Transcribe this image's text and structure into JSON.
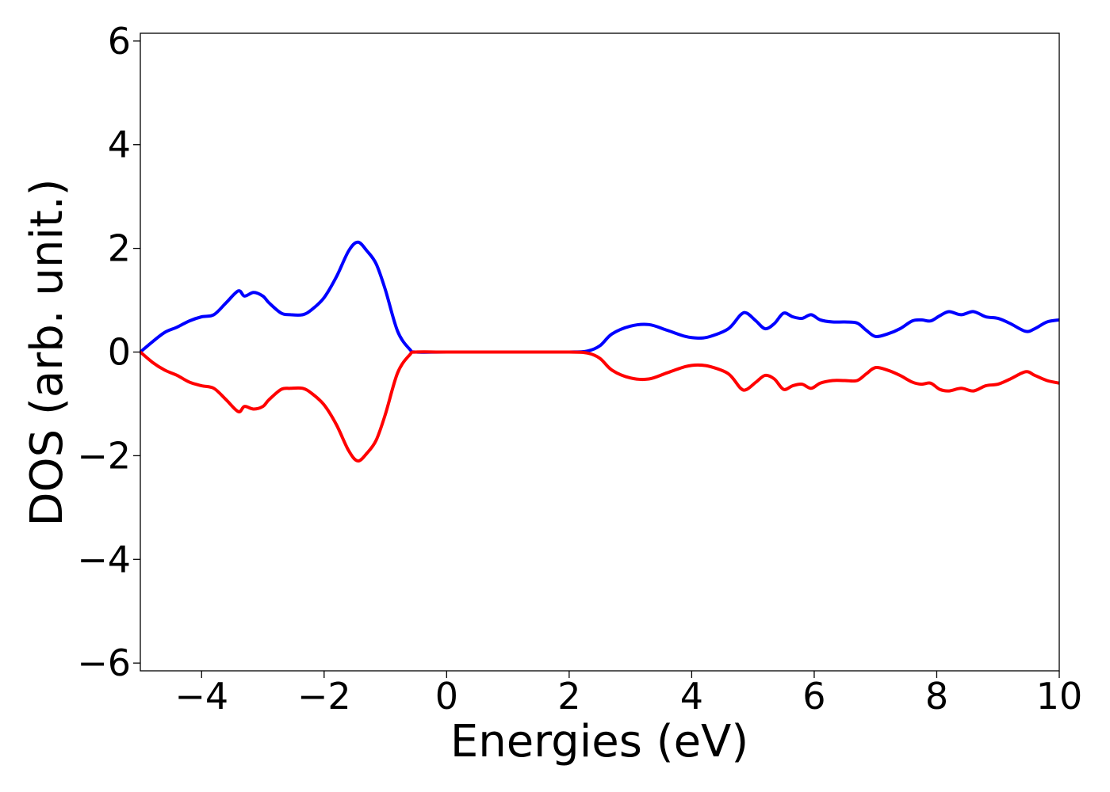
{
  "chart_data": {
    "type": "line",
    "title": "",
    "xlabel": "Energies (eV)",
    "ylabel": "DOS (arb. unit.)",
    "xlim": [
      -5,
      10
    ],
    "ylim": [
      -6.15,
      6.15
    ],
    "grid": false,
    "xticks": [
      -4,
      -2,
      0,
      2,
      4,
      6,
      8,
      10
    ],
    "yticks": [
      6,
      4,
      2,
      0,
      -2,
      -4,
      -6
    ],
    "xtick_labels": [
      "−4",
      "−2",
      "0",
      "2",
      "4",
      "6",
      "8",
      "10"
    ],
    "ytick_labels": [
      "6",
      "4",
      "2",
      "0",
      "−2",
      "−4",
      "−6"
    ],
    "series": [
      {
        "color": "#0000ff",
        "x": [
          -5.0,
          -4.8,
          -4.6,
          -4.4,
          -4.2,
          -4.0,
          -3.8,
          -3.6,
          -3.4,
          -3.3,
          -3.15,
          -3.0,
          -2.9,
          -2.7,
          -2.55,
          -2.35,
          -2.2,
          -2.0,
          -1.8,
          -1.6,
          -1.45,
          -1.3,
          -1.15,
          -1.0,
          -0.8,
          -0.6,
          -0.5,
          0.0,
          1.0,
          2.0,
          2.3,
          2.5,
          2.7,
          3.0,
          3.3,
          3.6,
          3.9,
          4.1,
          4.3,
          4.6,
          4.8,
          4.9,
          5.05,
          5.2,
          5.35,
          5.5,
          5.65,
          5.8,
          5.95,
          6.1,
          6.3,
          6.5,
          6.7,
          6.85,
          7.0,
          7.2,
          7.4,
          7.6,
          7.75,
          7.9,
          8.05,
          8.2,
          8.4,
          8.6,
          8.8,
          9.0,
          9.2,
          9.45,
          9.6,
          9.8,
          10.0
        ],
        "y": [
          0.0,
          0.2,
          0.38,
          0.48,
          0.6,
          0.68,
          0.72,
          0.95,
          1.18,
          1.08,
          1.15,
          1.08,
          0.95,
          0.75,
          0.72,
          0.72,
          0.82,
          1.05,
          1.45,
          1.95,
          2.12,
          1.95,
          1.7,
          1.2,
          0.4,
          0.05,
          0.0,
          0.0,
          0.0,
          0.0,
          0.02,
          0.12,
          0.35,
          0.5,
          0.53,
          0.42,
          0.3,
          0.27,
          0.3,
          0.45,
          0.72,
          0.75,
          0.6,
          0.45,
          0.55,
          0.75,
          0.68,
          0.65,
          0.72,
          0.62,
          0.58,
          0.58,
          0.56,
          0.42,
          0.3,
          0.35,
          0.45,
          0.6,
          0.62,
          0.6,
          0.7,
          0.78,
          0.72,
          0.78,
          0.68,
          0.65,
          0.55,
          0.4,
          0.45,
          0.58,
          0.62
        ]
      },
      {
        "color": "#ff0000",
        "x": [
          -5.0,
          -4.8,
          -4.6,
          -4.4,
          -4.2,
          -4.0,
          -3.8,
          -3.6,
          -3.4,
          -3.3,
          -3.15,
          -3.0,
          -2.9,
          -2.7,
          -2.55,
          -2.35,
          -2.2,
          -2.0,
          -1.8,
          -1.6,
          -1.45,
          -1.3,
          -1.15,
          -1.0,
          -0.8,
          -0.6,
          -0.5,
          0.0,
          1.0,
          2.0,
          2.3,
          2.5,
          2.7,
          3.0,
          3.3,
          3.6,
          3.9,
          4.1,
          4.3,
          4.6,
          4.8,
          4.9,
          5.05,
          5.2,
          5.35,
          5.5,
          5.65,
          5.8,
          5.95,
          6.1,
          6.3,
          6.5,
          6.7,
          6.85,
          7.0,
          7.2,
          7.4,
          7.6,
          7.75,
          7.9,
          8.05,
          8.2,
          8.4,
          8.6,
          8.8,
          9.0,
          9.2,
          9.45,
          9.6,
          9.8,
          10.0
        ],
        "y": [
          0.0,
          -0.2,
          -0.35,
          -0.45,
          -0.58,
          -0.65,
          -0.7,
          -0.92,
          -1.15,
          -1.05,
          -1.1,
          -1.05,
          -0.92,
          -0.72,
          -0.7,
          -0.7,
          -0.8,
          -1.02,
          -1.4,
          -1.9,
          -2.1,
          -1.95,
          -1.7,
          -1.2,
          -0.4,
          -0.05,
          0.0,
          0.0,
          0.0,
          0.0,
          -0.02,
          -0.12,
          -0.35,
          -0.5,
          -0.52,
          -0.4,
          -0.28,
          -0.25,
          -0.28,
          -0.42,
          -0.7,
          -0.72,
          -0.58,
          -0.45,
          -0.52,
          -0.72,
          -0.65,
          -0.62,
          -0.7,
          -0.6,
          -0.55,
          -0.55,
          -0.55,
          -0.42,
          -0.3,
          -0.35,
          -0.45,
          -0.58,
          -0.62,
          -0.6,
          -0.72,
          -0.75,
          -0.7,
          -0.75,
          -0.65,
          -0.62,
          -0.52,
          -0.38,
          -0.45,
          -0.55,
          -0.6
        ]
      }
    ]
  }
}
